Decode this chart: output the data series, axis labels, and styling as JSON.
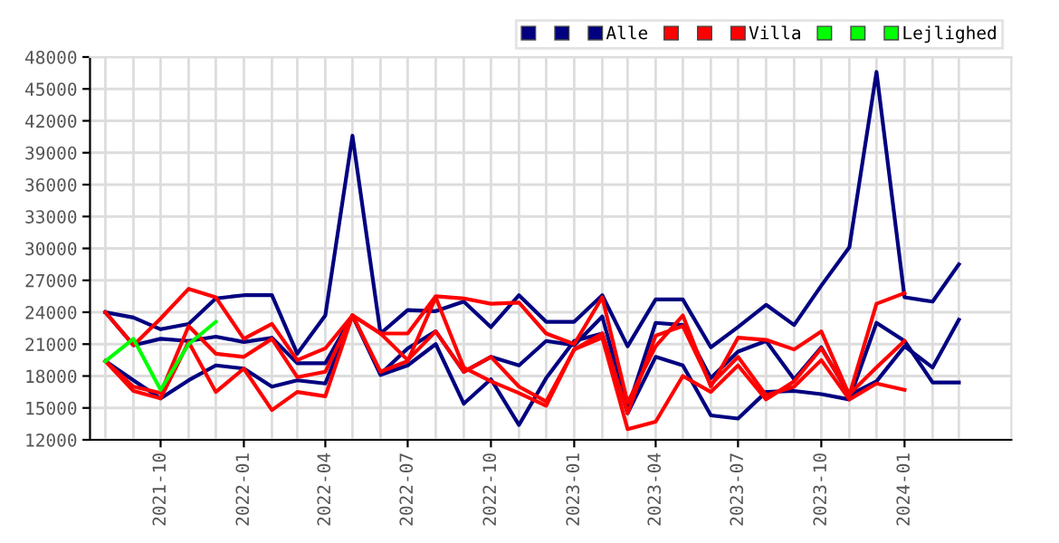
{
  "chart_data": {
    "type": "line",
    "x": [
      "2021-08",
      "2021-09",
      "2021-10",
      "2021-11",
      "2021-12",
      "2022-01",
      "2022-02",
      "2022-03",
      "2022-04",
      "2022-05",
      "2022-06",
      "2022-07",
      "2022-08",
      "2022-09",
      "2022-10",
      "2022-11",
      "2022-12",
      "2023-01",
      "2023-02",
      "2023-03",
      "2023-04",
      "2023-05",
      "2023-06",
      "2023-07",
      "2023-08",
      "2023-09",
      "2023-10",
      "2023-11",
      "2023-12",
      "2024-01",
      "2024-02",
      "2024-03"
    ],
    "series": [
      {
        "color": "#000080",
        "values": [
          24000,
          23500,
          22400,
          22900,
          25300,
          25600,
          25600,
          20100,
          23700,
          40600,
          22000,
          24200,
          24100,
          25000,
          22600,
          25600,
          23100,
          23100,
          25600,
          20800,
          25200,
          25200,
          20700,
          22600,
          24700,
          22800,
          26500,
          30100,
          46600,
          25400,
          25000,
          28500
        ]
      },
      {
        "color": "#000080",
        "values": [
          24000,
          20900,
          21500,
          21300,
          21700,
          21200,
          21600,
          19200,
          19200,
          23700,
          18200,
          20600,
          22200,
          18400,
          19800,
          19000,
          21300,
          20900,
          23600,
          14900,
          23000,
          22800,
          17800,
          20300,
          21300,
          17700,
          20700,
          16200,
          17500,
          20800,
          18800,
          23300
        ]
      },
      {
        "name": "Alle",
        "color": "#000080",
        "values": [
          19400,
          17600,
          15900,
          17600,
          19000,
          18700,
          17000,
          17600,
          17300,
          23700,
          18100,
          19000,
          21000,
          15400,
          17700,
          13400,
          17800,
          21300,
          22000,
          14500,
          19800,
          19000,
          14300,
          14000,
          16500,
          16600,
          16300,
          15800,
          23000,
          21300,
          17400,
          17400
        ]
      },
      {
        "color": "#ff0000",
        "values": [
          24000,
          20900,
          23400,
          26200,
          25400,
          21500,
          22900,
          19500,
          20600,
          23700,
          22000,
          22000,
          25500,
          25300,
          24800,
          24900,
          22000,
          21000,
          25400,
          15500,
          20800,
          23700,
          17000,
          21600,
          21400,
          20500,
          22200,
          16200,
          24800,
          25800,
          null,
          null
        ]
      },
      {
        "color": "#ff0000",
        "values": [
          19400,
          16600,
          15900,
          21200,
          16500,
          18700,
          14800,
          16500,
          16100,
          23700,
          18400,
          19400,
          25400,
          18800,
          17500,
          16400,
          15200,
          20500,
          21600,
          13000,
          13700,
          18000,
          16500,
          19000,
          15800,
          17500,
          20600,
          16300,
          18800,
          21300,
          null,
          null
        ]
      },
      {
        "name": "Villa",
        "color": "#ff0000",
        "values": [
          19400,
          17000,
          16400,
          22700,
          20100,
          19800,
          21500,
          17900,
          18400,
          23700,
          22000,
          19500,
          22200,
          18400,
          19800,
          17000,
          15600,
          20500,
          22000,
          14500,
          21800,
          22700,
          17200,
          19800,
          16200,
          17000,
          19500,
          15800,
          17300,
          16700,
          null,
          null
        ]
      },
      {
        "color": "#00ff00",
        "values": [
          19400,
          21500,
          16700,
          21000,
          23100,
          null,
          null,
          null,
          null,
          null,
          null,
          null,
          null,
          null,
          null,
          null,
          null,
          null,
          null,
          null,
          null,
          null,
          null,
          null,
          null,
          null,
          null,
          null,
          null,
          null,
          null,
          null
        ]
      },
      {
        "color": "#00ff00",
        "values": [
          null,
          null,
          null,
          null,
          null,
          null,
          null,
          null,
          null,
          null,
          null,
          null,
          null,
          null,
          null,
          null,
          null,
          null,
          null,
          null,
          null,
          null,
          null,
          null,
          null,
          null,
          null,
          null,
          null,
          null,
          null,
          null
        ]
      },
      {
        "name": "Lejlighed",
        "color": "#00ff00",
        "values": [
          null,
          null,
          null,
          null,
          null,
          null,
          null,
          null,
          null,
          null,
          null,
          null,
          null,
          null,
          null,
          null,
          null,
          null,
          null,
          null,
          null,
          null,
          null,
          null,
          null,
          null,
          null,
          null,
          null,
          null,
          null,
          null
        ]
      }
    ],
    "xlim": [
      "2021-07-15",
      "2024-04-28"
    ],
    "xticks": [
      "2021-10",
      "2022-01",
      "2022-04",
      "2022-07",
      "2022-10",
      "2023-01",
      "2023-04",
      "2023-07",
      "2023-10",
      "2024-01"
    ],
    "ylim": [
      12000,
      48000
    ],
    "yticks": [
      12000,
      15000,
      18000,
      21000,
      24000,
      27000,
      30000,
      33000,
      36000,
      39000,
      42000,
      45000,
      48000
    ],
    "grid": true,
    "legend": "top right",
    "marker": "none",
    "line_style": "solid"
  }
}
